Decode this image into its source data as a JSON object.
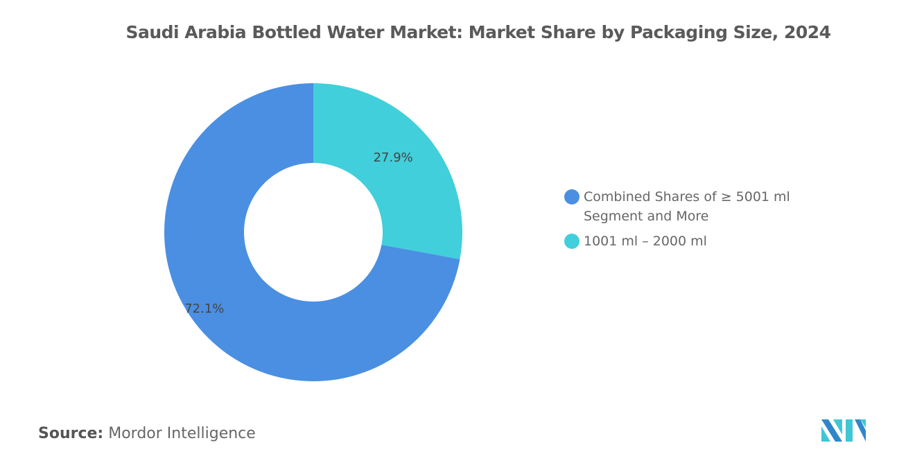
{
  "chart_data": {
    "type": "pie",
    "donut": true,
    "title": "Saudi Arabia Bottled Water Market: Market Share by Packaging Size, 2024",
    "series": [
      {
        "name": "1001 ml – 2000 ml",
        "value": 27.9,
        "label": "27.9%",
        "color": "#41CFDB"
      },
      {
        "name": "Combined Shares of ≥ 5001 ml Segment and More",
        "value": 72.1,
        "label": "72.1%",
        "color": "#4A8FE2"
      }
    ],
    "legend": {
      "placement": "right",
      "items": [
        {
          "label": "Combined Shares of ≥ 5001 ml Segment and More",
          "color": "#4A8FE2"
        },
        {
          "label": "1001 ml – 2000 ml",
          "color": "#41CFDB"
        }
      ]
    }
  },
  "source": {
    "label": "Source:",
    "value": "Mordor Intelligence"
  },
  "logo": "Mordor Intelligence logo"
}
